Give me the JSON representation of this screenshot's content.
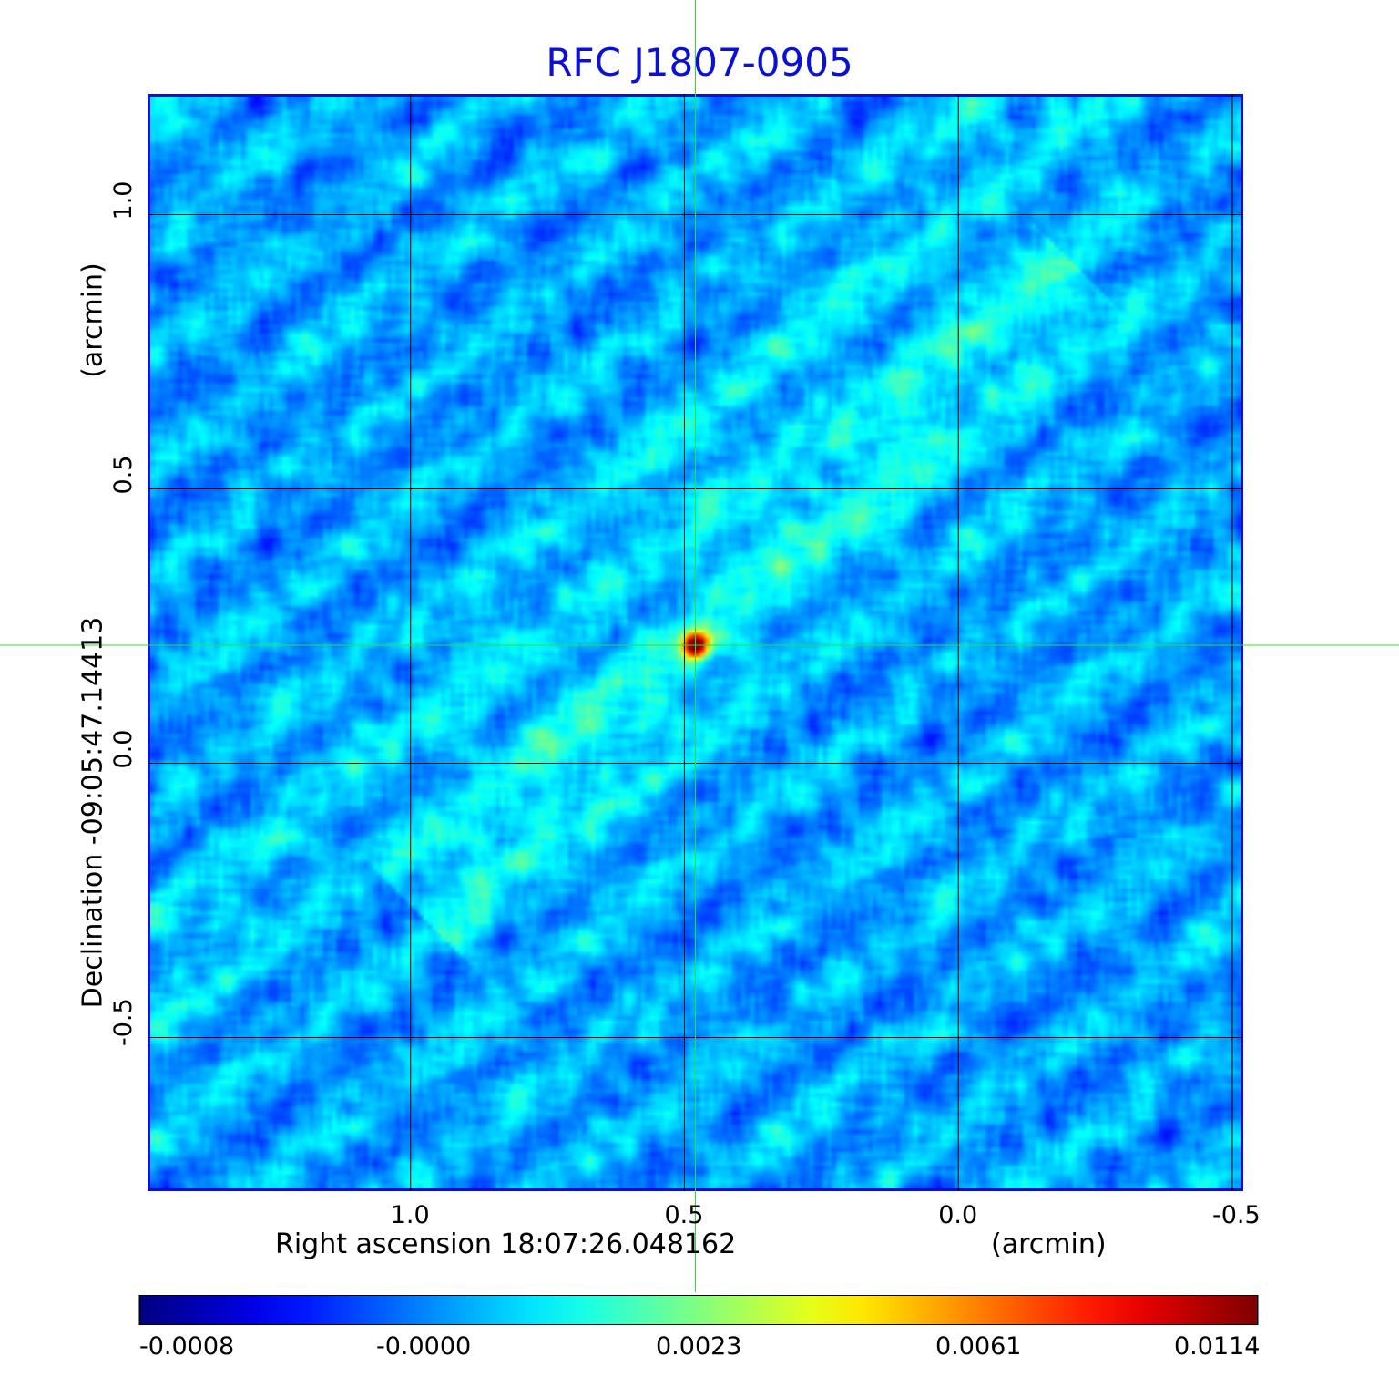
{
  "chart_data": {
    "type": "heatmap",
    "title": "RFC J1807-0905",
    "xlabel": "Right ascension  18:07:26.048162",
    "xunit": "(arcmin)",
    "ylabel": "Declination  -09:05:47.14413",
    "yunit": "(arcmin)",
    "x_ticks": [
      "1.0",
      "0.5",
      "0.0",
      "-0.5"
    ],
    "y_ticks": [
      "1.0",
      "0.5",
      "0.0",
      "-0.5"
    ],
    "x_tick_values": [
      1.0,
      0.5,
      0.0,
      -0.5
    ],
    "y_tick_values": [
      1.0,
      0.5,
      0.0,
      -0.5
    ],
    "xlim": [
      1.48,
      -0.52
    ],
    "ylim": [
      -0.78,
      1.22
    ],
    "grid": true,
    "crosshair": {
      "x": 0.48,
      "y": 0.215,
      "color": "#33dd33"
    },
    "colormap": "jet",
    "colorbar_labels": [
      "-0.0008",
      "-0.0000",
      "0.0023",
      "0.0061",
      "0.0114"
    ],
    "colorbar_values": [
      -0.0008,
      0.0,
      0.0023,
      0.0061,
      0.0114
    ],
    "peak": {
      "x": 0.48,
      "y": 0.215,
      "value": 0.0114
    },
    "colors": {
      "title": "#0a10d6",
      "frame": "#0a10d6",
      "grid": "#000000",
      "crosshair": "#33dd33"
    }
  }
}
